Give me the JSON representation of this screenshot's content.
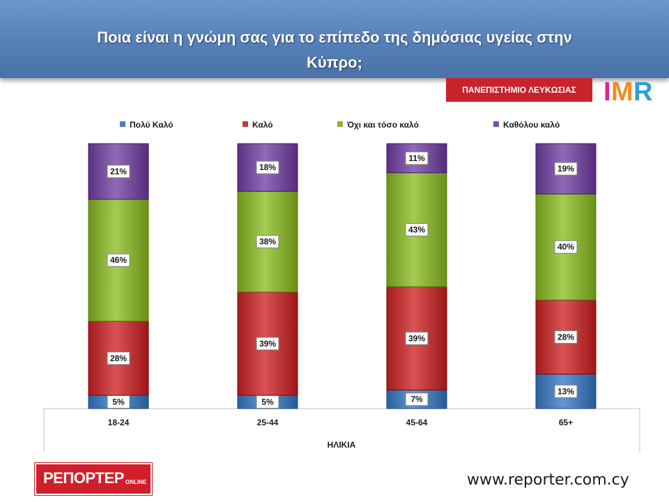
{
  "title": "Ποια είναι η γνώμη σας για το επίπεδο της δημόσιας υγείας στην Κύπρο;",
  "title_line1": "Ποια είναι η γνώμη σας για το επίπεδο της δημόσιας υγείας στην",
  "title_line2": "Κύπρο;",
  "university_badge": "ΠΑΝΕΠΙΣΤΗΜΙΟ ΛΕΥΚΩΣΙΑΣ",
  "imr_logo": "IMR",
  "reporter_logo": "ΡΕΠΟΡΤΕΡ",
  "reporter_logo_suffix": "ONLINE",
  "website": "www.reporter.com.cy",
  "colors": {
    "title_bar": "#5580b8",
    "Πολύ Καλό": "#4a7ebb",
    "Καλό": "#c0393b",
    "Όχι και τόσο καλό": "#8bb33a",
    "Καθόλου καλό": "#7950a0",
    "badge_red": "#c8232c"
  },
  "chart_data": {
    "type": "bar",
    "stacked": true,
    "percent_stacked": true,
    "categories": [
      "18-24",
      "25-44",
      "45-64",
      "65+"
    ],
    "xlabel": "ΗΛΙΚΙΑ",
    "ylabel": "",
    "ylim": [
      0,
      100
    ],
    "legend_position": "top",
    "grid": false,
    "series": [
      {
        "name": "Πολύ Καλό",
        "values": [
          5,
          5,
          7,
          13
        ],
        "labels": [
          "5%",
          "5%",
          "7%",
          "13%"
        ]
      },
      {
        "name": "Καλό",
        "values": [
          28,
          39,
          39,
          28
        ],
        "labels": [
          "28%",
          "39%",
          "39%",
          "28%"
        ]
      },
      {
        "name": "Όχι και τόσο καλό",
        "values": [
          46,
          38,
          43,
          40
        ],
        "labels": [
          "46%",
          "38%",
          "43%",
          "40%"
        ]
      },
      {
        "name": "Καθόλου καλό",
        "values": [
          21,
          18,
          11,
          19
        ],
        "labels": [
          "21%",
          "18%",
          "11%",
          "19%"
        ]
      }
    ]
  }
}
